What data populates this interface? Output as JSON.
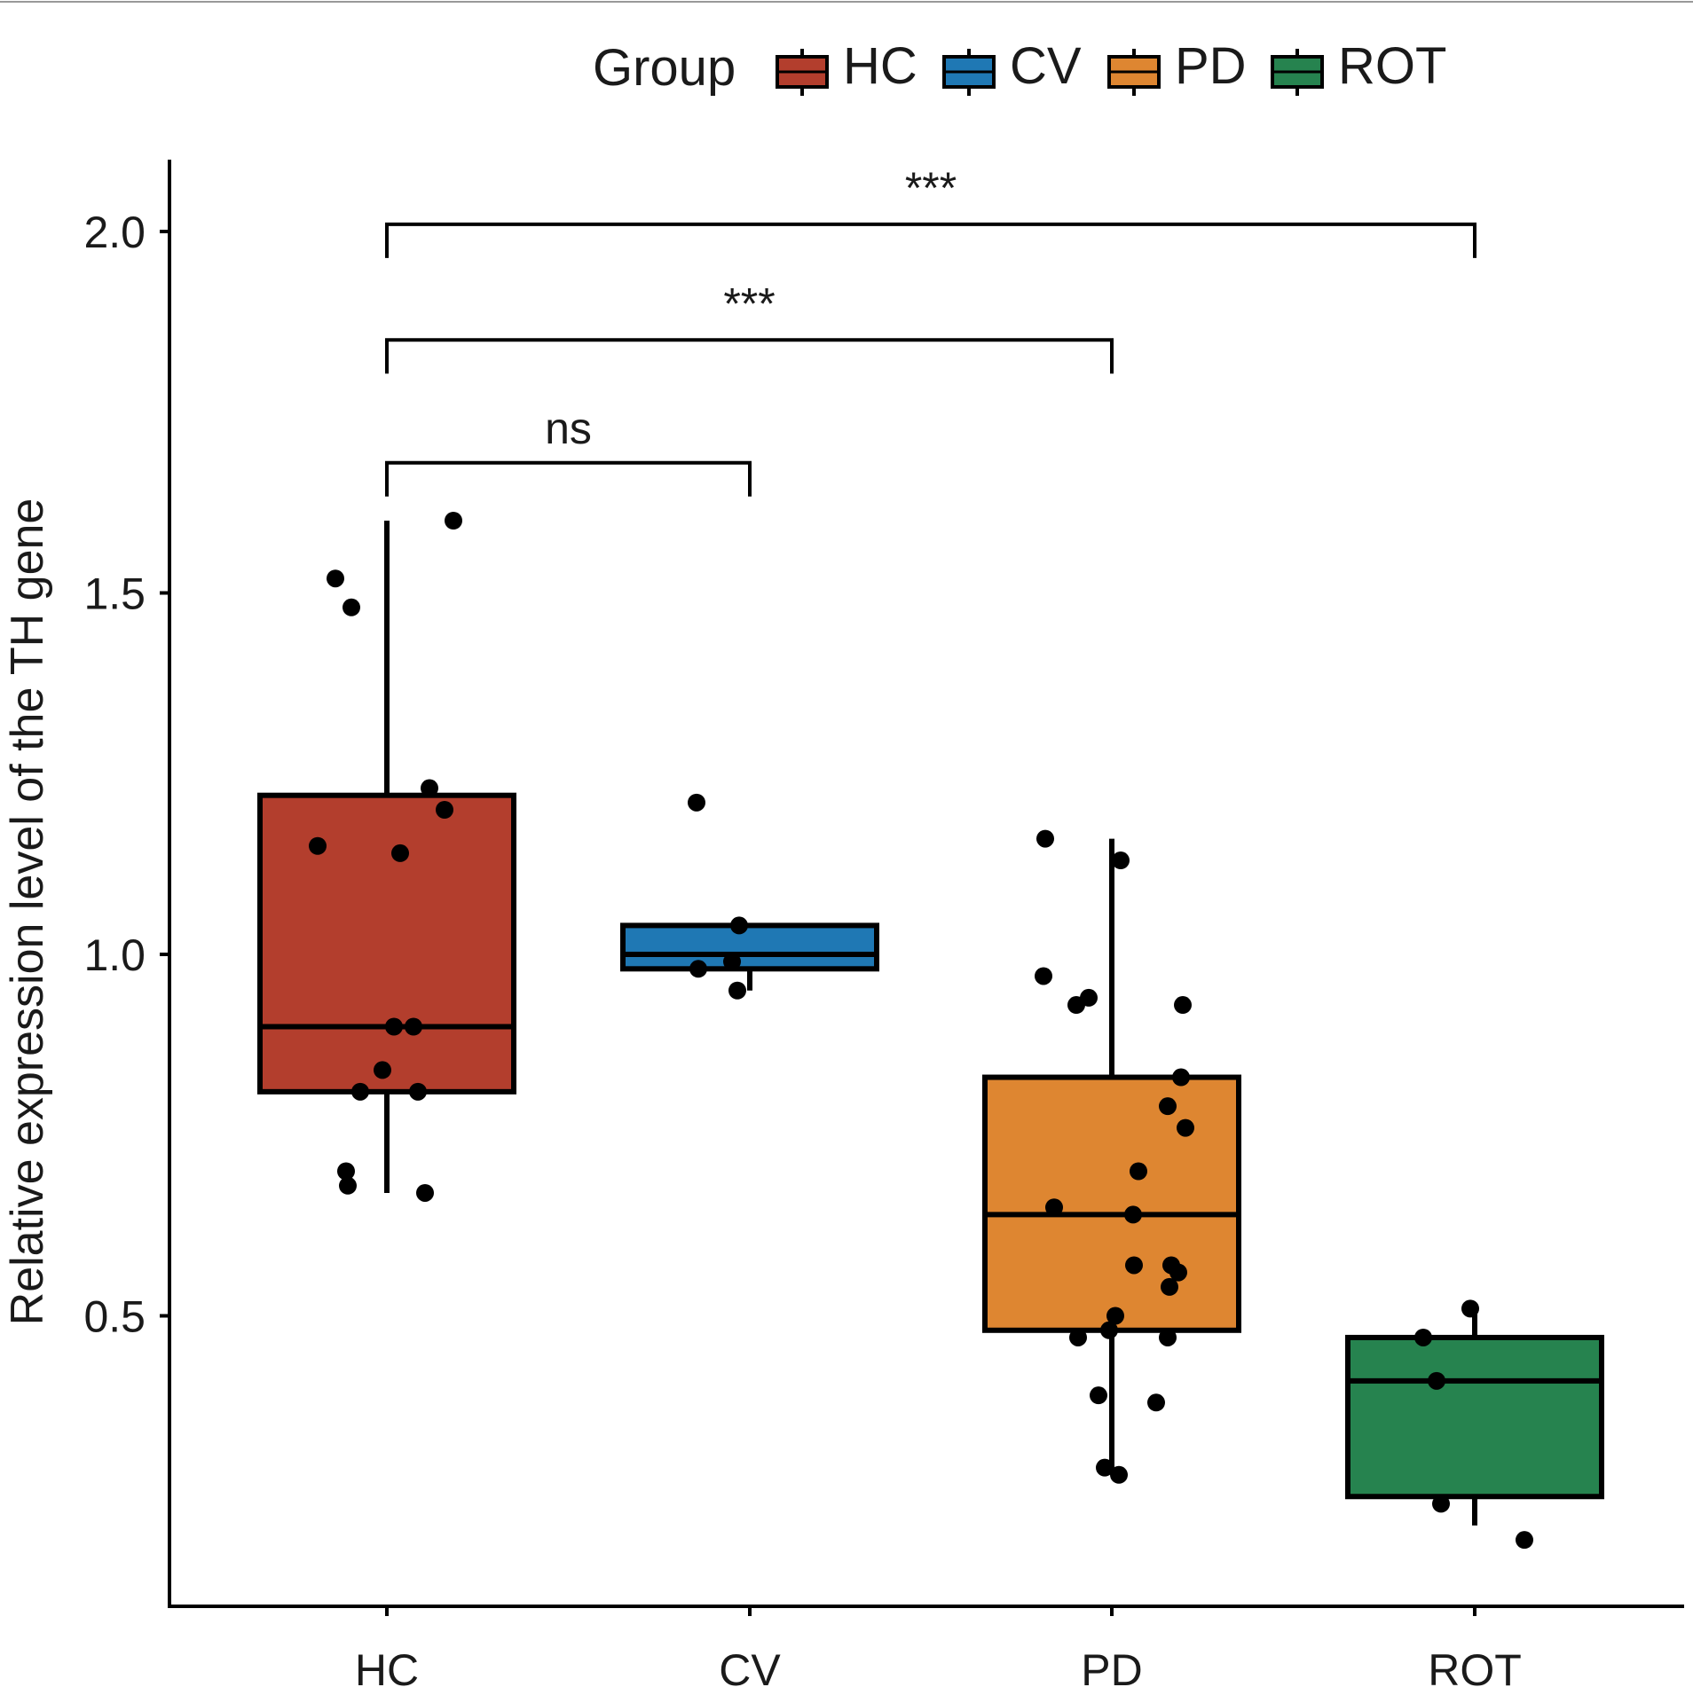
{
  "chart_data": {
    "type": "boxplot",
    "title": "",
    "xlabel": "",
    "ylabel": "Relative expression level of the TH gene",
    "ylim": [
      0.18,
      2.1
    ],
    "yticks": [
      0.5,
      1.0,
      1.5,
      2.0
    ],
    "ytick_labels": [
      "0.5",
      "1.0",
      "1.5",
      "2.0"
    ],
    "categories": [
      "HC",
      "CV",
      "PD",
      "ROT"
    ],
    "legend": {
      "title": "Group",
      "position": "top",
      "entries": [
        {
          "label": "HC",
          "color": "#b33e2d"
        },
        {
          "label": "CV",
          "color": "#1f78b4"
        },
        {
          "label": "PD",
          "color": "#de8631"
        },
        {
          "label": "ROT",
          "color": "#26834f"
        }
      ]
    },
    "series": [
      {
        "name": "HC",
        "color": "#b33e2d",
        "box": {
          "whisker_low": 0.67,
          "q1": 0.81,
          "median": 0.9,
          "q3": 1.22,
          "whisker_high": 1.6
        },
        "points": [
          1.6,
          1.52,
          1.48,
          1.23,
          1.2,
          1.15,
          1.14,
          0.9,
          0.9,
          0.84,
          0.81,
          0.81,
          0.7,
          0.68,
          0.67
        ]
      },
      {
        "name": "CV",
        "color": "#1f78b4",
        "box": {
          "whisker_low": 0.95,
          "q1": 0.98,
          "median": 1.0,
          "q3": 1.04,
          "whisker_high": 1.04
        },
        "points": [
          1.21,
          1.04,
          0.99,
          0.98,
          0.95
        ]
      },
      {
        "name": "PD",
        "color": "#de8631",
        "box": {
          "whisker_low": 0.29,
          "q1": 0.48,
          "median": 0.64,
          "q3": 0.83,
          "whisker_high": 1.16
        },
        "points": [
          1.16,
          1.13,
          0.97,
          0.94,
          0.93,
          0.93,
          0.83,
          0.79,
          0.76,
          0.7,
          0.65,
          0.64,
          0.57,
          0.57,
          0.56,
          0.54,
          0.5,
          0.48,
          0.47,
          0.47,
          0.39,
          0.38,
          0.29,
          0.28
        ]
      },
      {
        "name": "ROT",
        "color": "#26834f",
        "box": {
          "whisker_low": 0.21,
          "q1": 0.25,
          "median": 0.41,
          "q3": 0.47,
          "whisker_high": 0.51
        },
        "points": [
          0.51,
          0.47,
          0.41,
          0.24,
          0.19
        ]
      }
    ],
    "comparisons": [
      {
        "from": "HC",
        "to": "CV",
        "label": "ns",
        "y": 1.68
      },
      {
        "from": "HC",
        "to": "PD",
        "label": "***",
        "y": 1.85
      },
      {
        "from": "HC",
        "to": "ROT",
        "label": "***",
        "y": 2.01
      }
    ]
  }
}
